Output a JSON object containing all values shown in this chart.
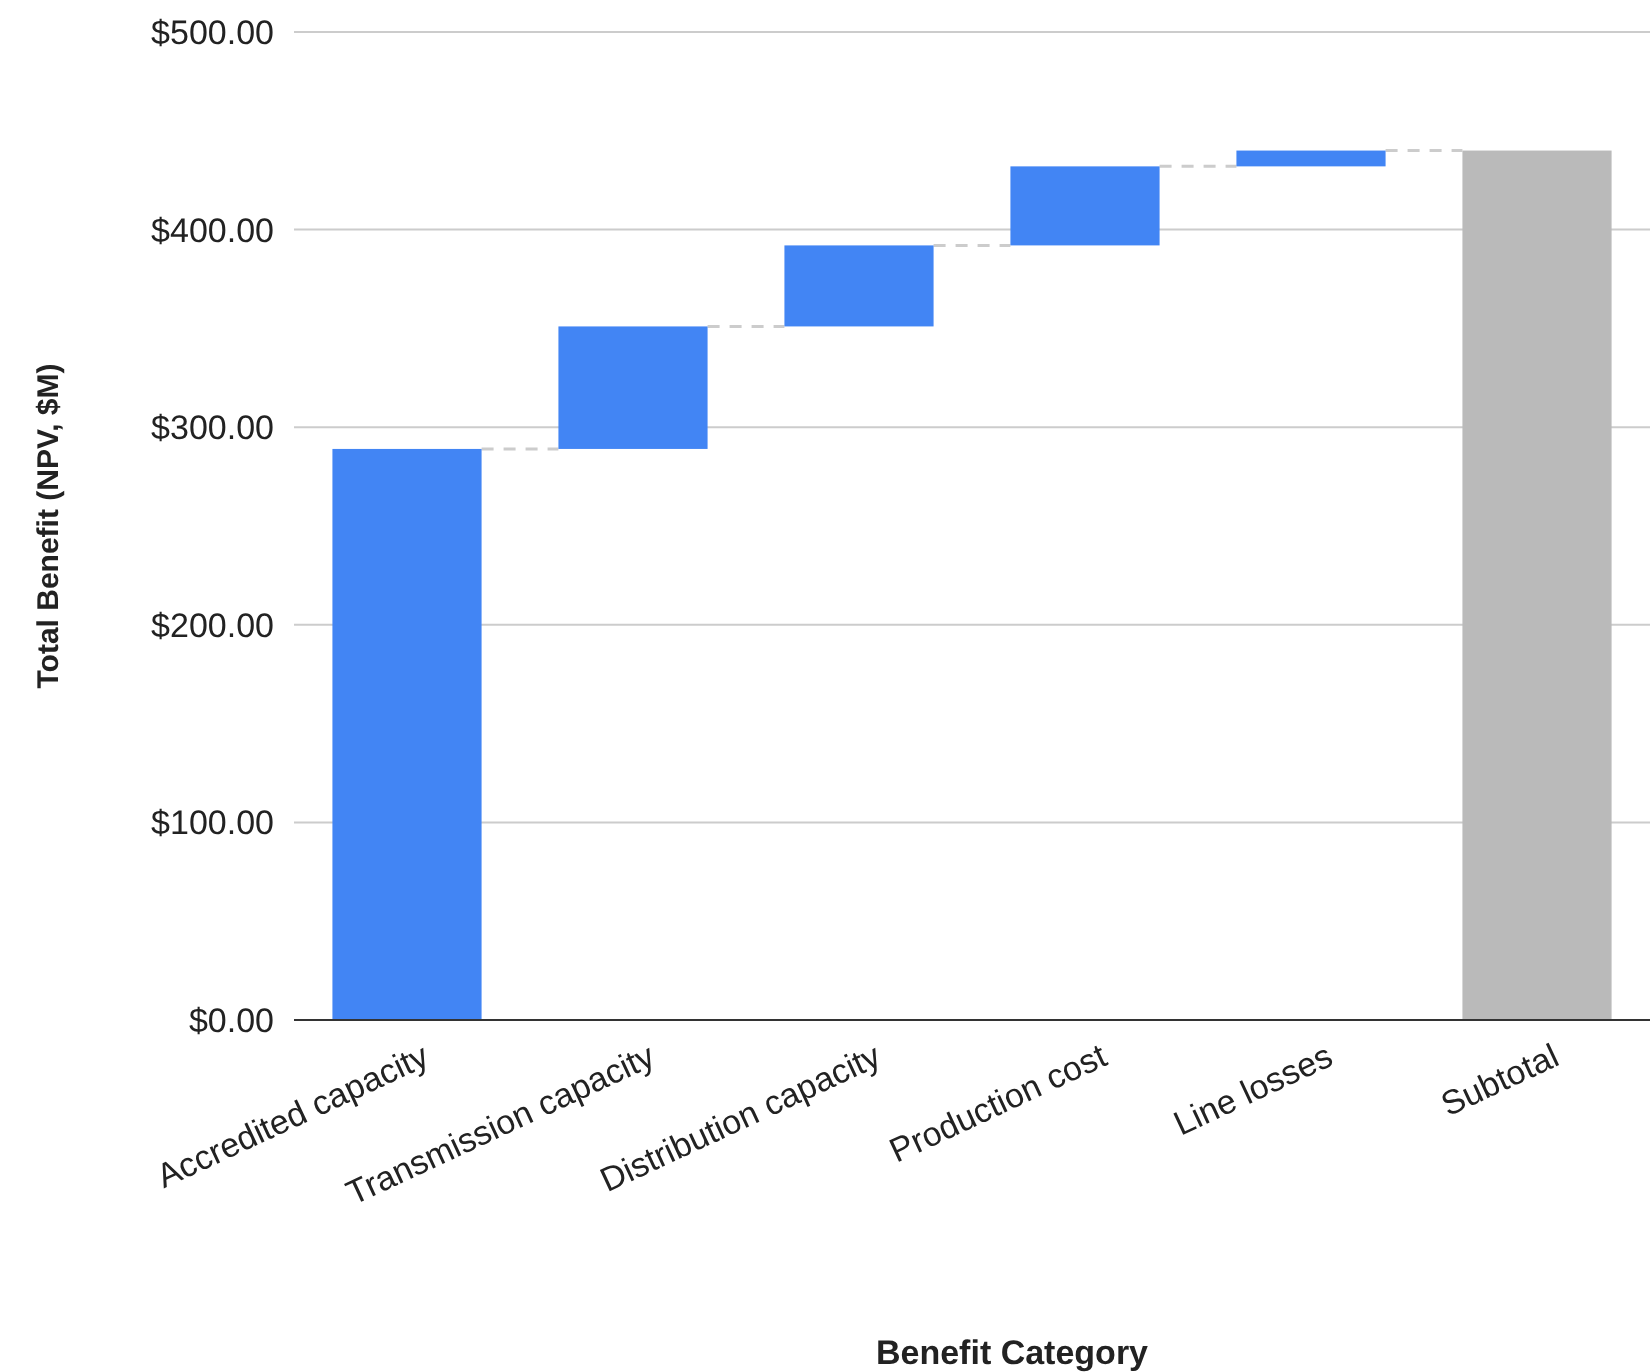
{
  "chart_data": {
    "type": "bar",
    "xlabel": "Benefit Category",
    "ylabel": "Total Benefit (NPV, $M)",
    "categories": [
      "Accredited capacity",
      "Transmission capacity",
      "Distribution capacity",
      "Production cost",
      "Line losses",
      "Subtotal"
    ],
    "values": [
      289,
      62,
      41,
      40,
      8,
      440
    ],
    "base": [
      0,
      289,
      351,
      392,
      432,
      0
    ],
    "colors": [
      "#4285f4",
      "#4285f4",
      "#4285f4",
      "#4285f4",
      "#4285f4",
      "#bababa"
    ],
    "ylim": [
      0,
      500
    ],
    "yticks": [
      {
        "value": 0,
        "label": "$0.00"
      },
      {
        "value": 100,
        "label": "$100.00"
      },
      {
        "value": 200,
        "label": "$200.00"
      },
      {
        "value": 300,
        "label": "$300.00"
      },
      {
        "value": 400,
        "label": "$400.00"
      },
      {
        "value": 500,
        "label": "$500.00"
      }
    ],
    "grid": "y"
  }
}
